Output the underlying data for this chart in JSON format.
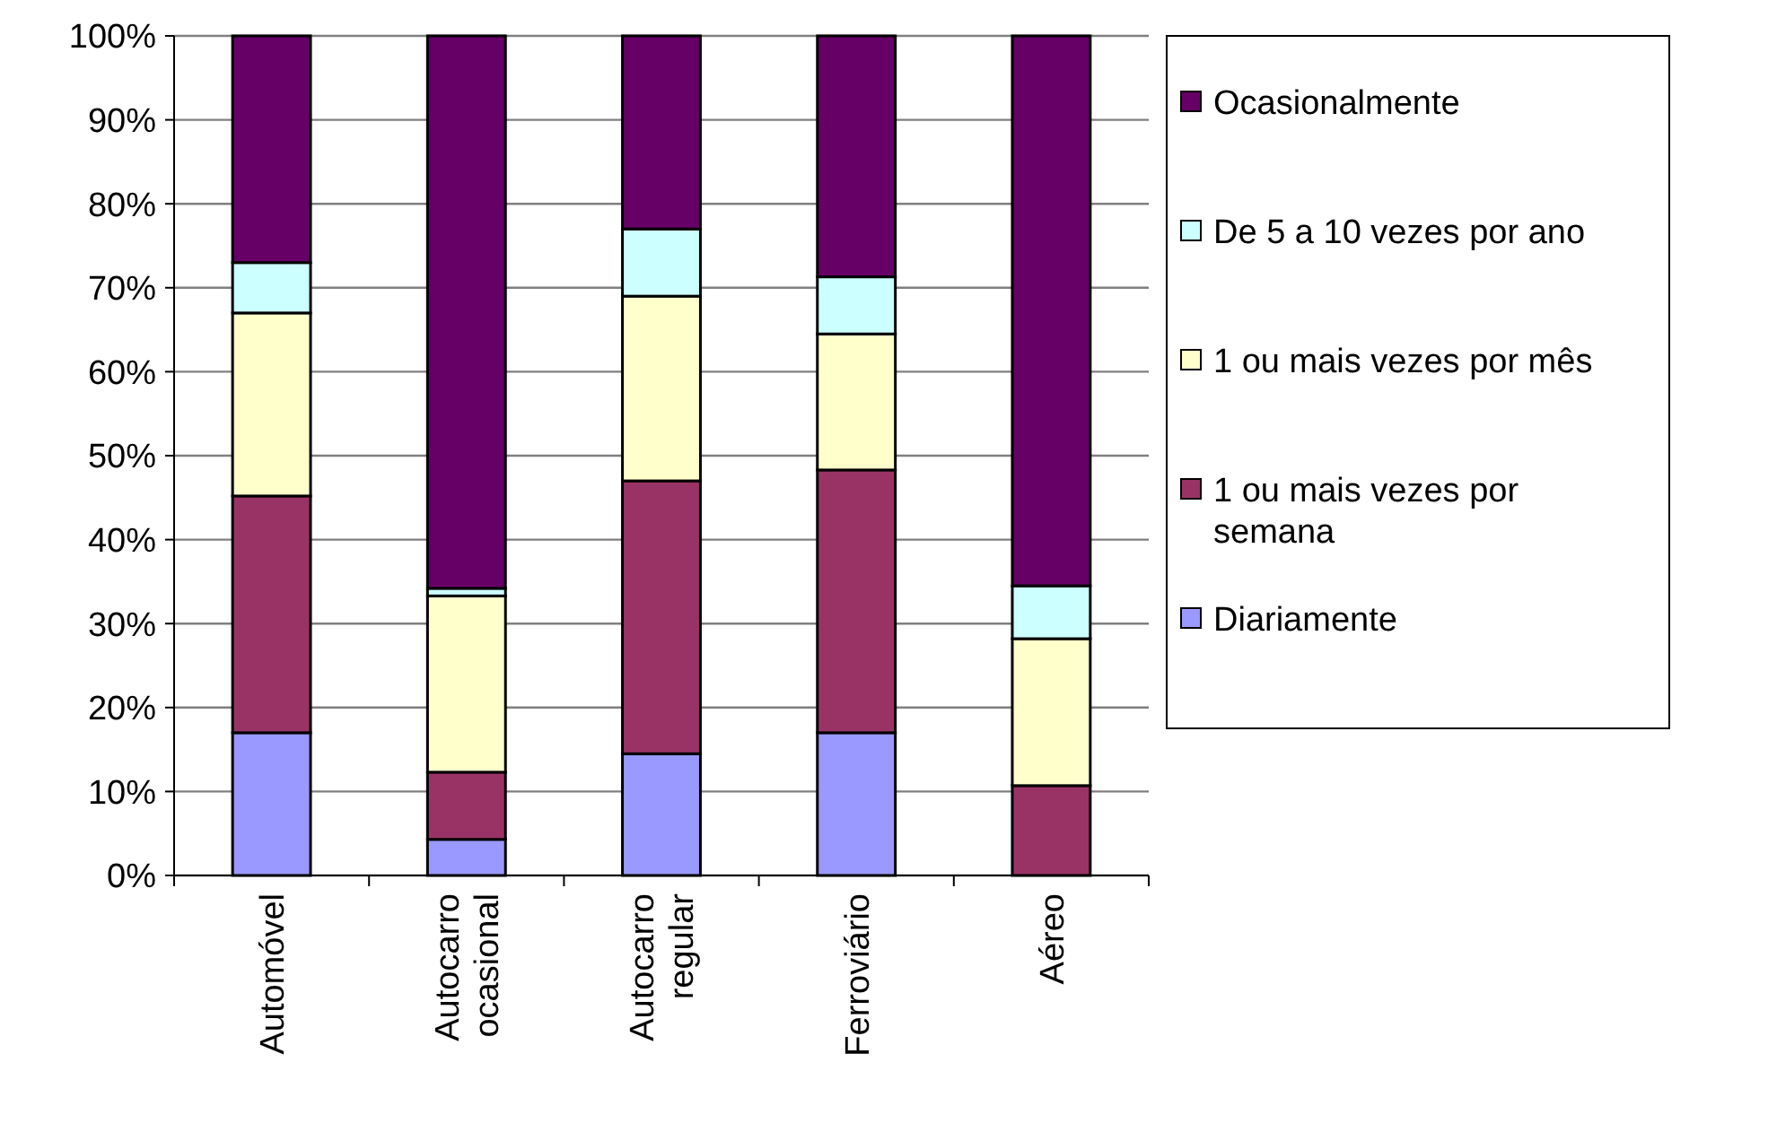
{
  "chart_data": {
    "type": "bar",
    "stacked": true,
    "categories": [
      "Automóvel",
      "Autocarro ocasional",
      "Autocarro regular",
      "Ferroviário",
      "Aéreo"
    ],
    "series": [
      {
        "name": "Diariamente",
        "color": "#9999ff",
        "values": [
          17,
          4.3,
          14.5,
          17,
          0
        ]
      },
      {
        "name": "1 ou mais vezes por semana",
        "color": "#993366",
        "values": [
          28.2,
          8,
          32.5,
          31.3,
          10.7
        ]
      },
      {
        "name": "1 ou mais vezes por mês",
        "color": "#ffffcc",
        "values": [
          21.8,
          21,
          22,
          16.2,
          17.5
        ]
      },
      {
        "name": "De 5 a 10 vezes por ano",
        "color": "#ccffff",
        "values": [
          6,
          0.9,
          8,
          6.8,
          6.3
        ]
      },
      {
        "name": "Ocasionalmente",
        "color": "#660066",
        "values": [
          27,
          65.8,
          23,
          28.7,
          65.5
        ]
      }
    ],
    "ylim": [
      0,
      100
    ],
    "yticks": [
      {
        "value": 0,
        "label": "0%"
      },
      {
        "value": 10,
        "label": "10%"
      },
      {
        "value": 20,
        "label": "20%"
      },
      {
        "value": 30,
        "label": "30%"
      },
      {
        "value": 40,
        "label": "40%"
      },
      {
        "value": 50,
        "label": "50%"
      },
      {
        "value": 60,
        "label": "60%"
      },
      {
        "value": 70,
        "label": "70%"
      },
      {
        "value": 80,
        "label": "80%"
      },
      {
        "value": 90,
        "label": "90%"
      },
      {
        "value": 100,
        "label": "100%"
      }
    ],
    "grid": "y",
    "legend": "right"
  }
}
